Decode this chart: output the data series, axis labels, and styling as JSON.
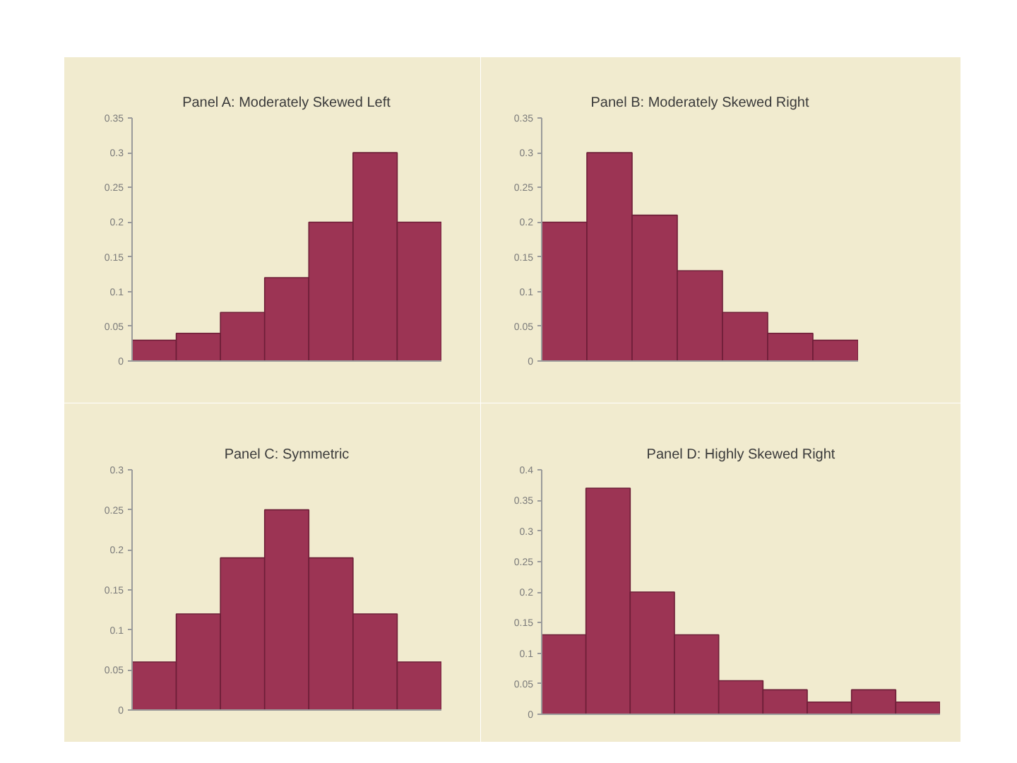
{
  "chart_data": [
    {
      "type": "bar",
      "title": "Panel A: Moderately Skewed Left",
      "categories": [
        null,
        null,
        null,
        null,
        null,
        null,
        null
      ],
      "values": [
        0.03,
        0.04,
        0.07,
        0.12,
        0.2,
        0.3,
        0.2
      ],
      "color": "#9c3454",
      "ylim": [
        0,
        0.35
      ],
      "yticks": [
        0,
        0.05,
        0.1,
        0.15,
        0.2,
        0.25,
        0.3,
        0.35
      ]
    },
    {
      "type": "bar",
      "title": "Panel B: Moderately Skewed Right",
      "categories": [
        null,
        null,
        null,
        null,
        null,
        null,
        null
      ],
      "values": [
        0.2,
        0.3,
        0.21,
        0.13,
        0.07,
        0.04,
        0.03
      ],
      "color": "#9c3454",
      "ylim": [
        0,
        0.35
      ],
      "yticks": [
        0,
        0.05,
        0.1,
        0.15,
        0.2,
        0.25,
        0.3,
        0.35
      ]
    },
    {
      "type": "bar",
      "title": "Panel C: Symmetric",
      "categories": [
        null,
        null,
        null,
        null,
        null,
        null,
        null
      ],
      "values": [
        0.06,
        0.12,
        0.19,
        0.25,
        0.19,
        0.12,
        0.06
      ],
      "color": "#9c3454",
      "ylim": [
        0,
        0.3
      ],
      "yticks": [
        0,
        0.05,
        0.1,
        0.15,
        0.2,
        0.25,
        0.3
      ]
    },
    {
      "type": "bar",
      "title": "Panel D: Highly Skewed Right",
      "categories": [
        null,
        null,
        null,
        null,
        null,
        null,
        null,
        null,
        null
      ],
      "values": [
        0.13,
        0.37,
        0.2,
        0.13,
        0.055,
        0.04,
        0.02,
        0.04,
        0.02
      ],
      "color": "#9c3454",
      "ylim": [
        0,
        0.4
      ],
      "yticks": [
        0,
        0.05,
        0.1,
        0.15,
        0.2,
        0.25,
        0.3,
        0.35,
        0.4
      ]
    }
  ]
}
